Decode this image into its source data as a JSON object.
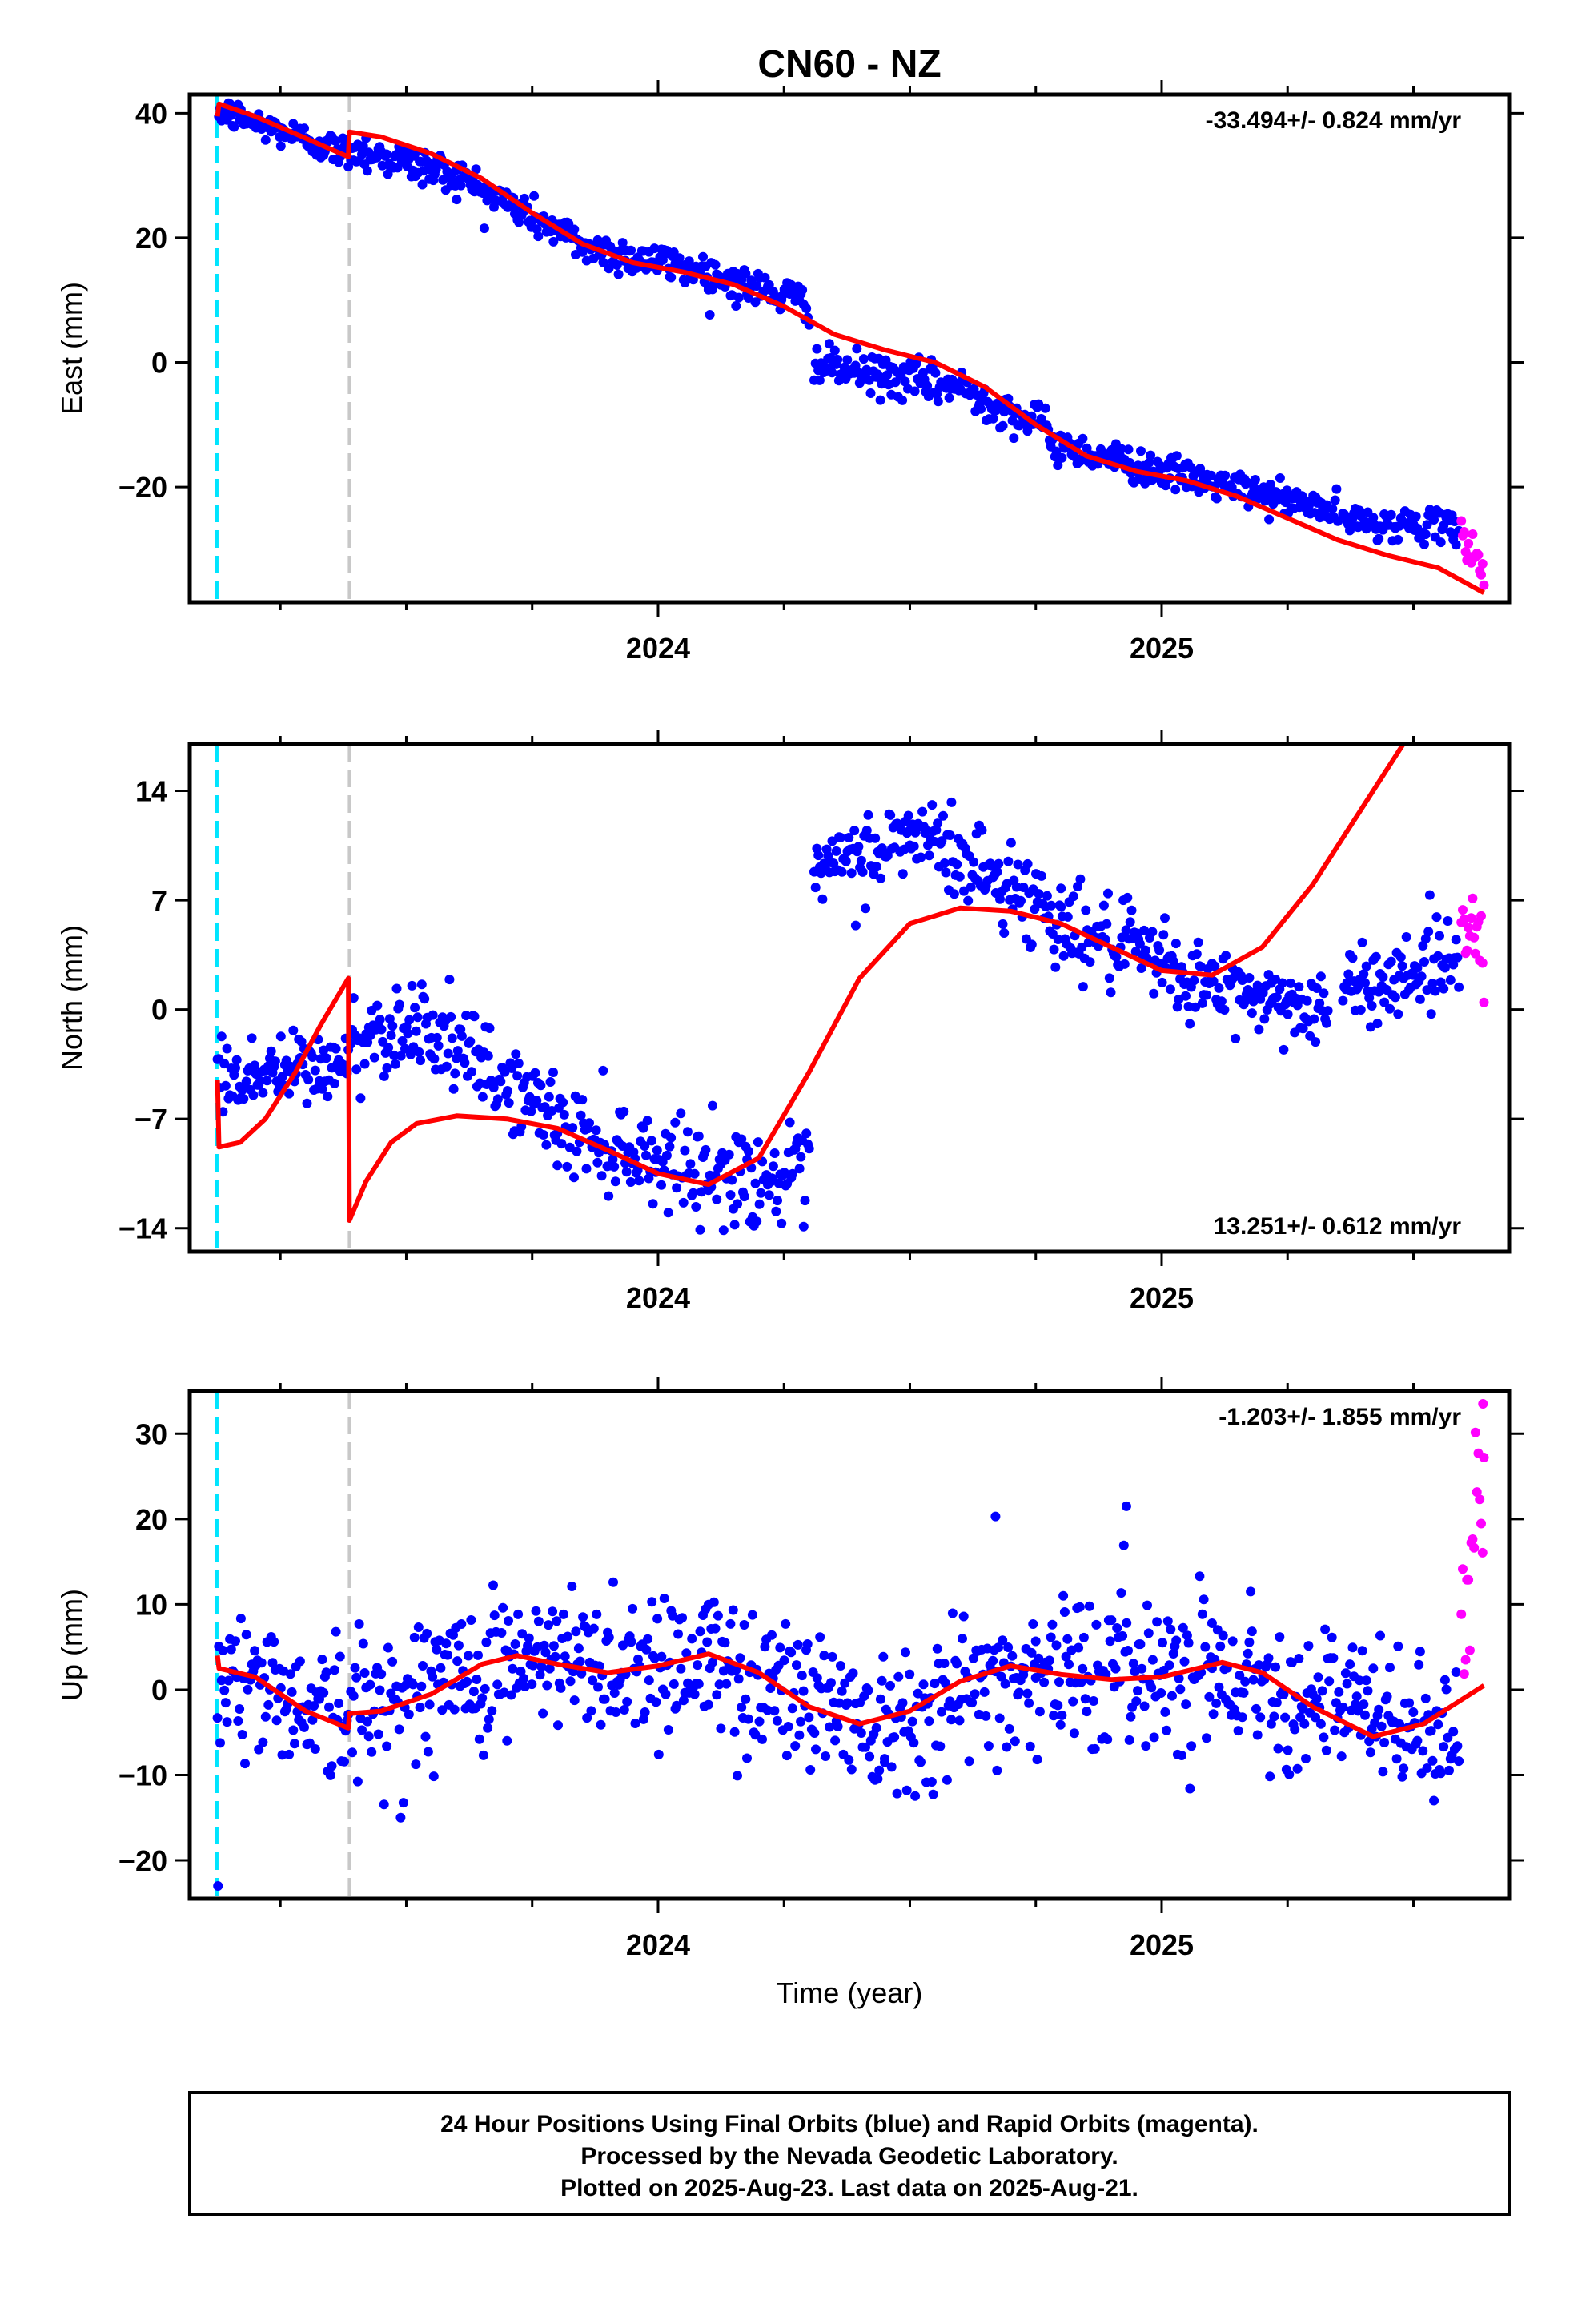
{
  "station": "CN60 - NZ",
  "colors": {
    "final": "#0000ff",
    "rapid": "#ff00ff",
    "model": "#ff0000",
    "event_cyan": "#00e5ff",
    "event_grey": "#c8c8c8"
  },
  "chart_data": [
    {
      "type": "scatter",
      "id": "east",
      "ylabel": "East (mm)",
      "xlabel": "",
      "xlim": [
        2023.07,
        2025.69
      ],
      "ylim": [
        -38.5,
        43
      ],
      "yticks": [
        -20,
        0,
        20,
        40
      ],
      "xticks": [
        2024,
        2025
      ],
      "minor_xticks": [
        2023.25,
        2023.5,
        2023.75,
        2024.25,
        2024.5,
        2024.75,
        2025.25,
        2025.5
      ],
      "rate_text": "-33.494+/- 0.824 mm/yr",
      "rate_position": "top-right",
      "vlines": [
        {
          "x": 2023.124,
          "color": "cyan"
        },
        {
          "x": 2023.387,
          "color": "grey"
        }
      ],
      "series": [
        {
          "kind": "final",
          "segments": [
            {
              "x0": 2023.125,
              "x1": 2023.385,
              "y0": 40.5,
              "y1": 33.5,
              "noise": 1.3
            },
            {
              "x0": 2023.39,
              "x1": 2023.6,
              "y0": 34.5,
              "y1": 30.0,
              "noise": 1.6
            },
            {
              "x0": 2023.6,
              "x1": 2023.85,
              "y0": 30.0,
              "y1": 19.0,
              "noise": 1.5
            },
            {
              "x0": 2023.85,
              "x1": 2024.1,
              "y0": 18.5,
              "y1": 14.5,
              "noise": 1.5
            },
            {
              "x0": 2024.1,
              "x1": 2024.3,
              "y0": 14.0,
              "y1": 9.5,
              "noise": 1.5
            },
            {
              "x0": 2024.31,
              "x1": 2024.6,
              "y0": -0.5,
              "y1": -4.0,
              "noise": 1.6
            },
            {
              "x0": 2024.6,
              "x1": 2024.78,
              "y0": -4.0,
              "y1": -11.0,
              "noise": 1.6
            },
            {
              "x0": 2024.78,
              "x1": 2025.0,
              "y0": -13.0,
              "y1": -17.5,
              "noise": 1.4
            },
            {
              "x0": 2025.0,
              "x1": 2025.35,
              "y0": -17.5,
              "y1": -24.0,
              "noise": 1.3
            },
            {
              "x0": 2025.36,
              "x1": 2025.59,
              "y0": -25.5,
              "y1": -26.5,
              "noise": 1.2
            }
          ]
        },
        {
          "kind": "rapid",
          "segments": [
            {
              "x0": 2025.595,
              "x1": 2025.64,
              "y0": -27.5,
              "y1": -33.0,
              "noise": 1.8
            }
          ]
        }
      ],
      "model": [
        [
          2023.125,
          39.5
        ],
        [
          2023.128,
          41.5
        ],
        [
          2023.2,
          39.5
        ],
        [
          2023.3,
          36.0
        ],
        [
          2023.385,
          33.0
        ],
        [
          2023.387,
          37.0
        ],
        [
          2023.45,
          36.2
        ],
        [
          2023.55,
          33.5
        ],
        [
          2023.65,
          29.5
        ],
        [
          2023.75,
          24.0
        ],
        [
          2023.85,
          19.0
        ],
        [
          2023.95,
          16.0
        ],
        [
          2024.05,
          14.5
        ],
        [
          2024.15,
          12.5
        ],
        [
          2024.25,
          9.0
        ],
        [
          2024.35,
          4.5
        ],
        [
          2024.45,
          2.0
        ],
        [
          2024.55,
          0.0
        ],
        [
          2024.65,
          -4.0
        ],
        [
          2024.75,
          -10.0
        ],
        [
          2024.85,
          -15.0
        ],
        [
          2024.95,
          -17.5
        ],
        [
          2025.05,
          -19.0
        ],
        [
          2025.15,
          -21.5
        ],
        [
          2025.25,
          -25.0
        ],
        [
          2025.35,
          -28.5
        ],
        [
          2025.45,
          -31.0
        ],
        [
          2025.55,
          -33.0
        ],
        [
          2025.64,
          -37.0
        ]
      ]
    },
    {
      "type": "scatter",
      "id": "north",
      "ylabel": "North (mm)",
      "xlabel": "",
      "xlim": [
        2023.07,
        2025.69
      ],
      "ylim": [
        -15.5,
        17
      ],
      "yticks": [
        -14,
        -7,
        0,
        7,
        14
      ],
      "xticks": [
        2024,
        2025
      ],
      "minor_xticks": [
        2023.25,
        2023.5,
        2023.75,
        2024.25,
        2024.5,
        2024.75,
        2025.25,
        2025.5
      ],
      "rate_text": "13.251+/- 0.612 mm/yr",
      "rate_position": "bottom-right",
      "vlines": [
        {
          "x": 2023.124,
          "color": "cyan"
        },
        {
          "x": 2023.387,
          "color": "grey"
        }
      ],
      "series": [
        {
          "kind": "final",
          "segments": [
            {
              "x0": 2023.125,
              "x1": 2023.385,
              "y0": -4.5,
              "y1": -3.5,
              "noise": 1.3
            },
            {
              "x0": 2023.39,
              "x1": 2023.55,
              "y0": -2.0,
              "y1": -0.5,
              "noise": 1.4
            },
            {
              "x0": 2023.55,
              "x1": 2023.8,
              "y0": -1.5,
              "y1": -7.0,
              "noise": 1.4
            },
            {
              "x0": 2023.8,
              "x1": 2024.1,
              "y0": -7.5,
              "y1": -10.5,
              "noise": 1.5
            },
            {
              "x0": 2024.1,
              "x1": 2024.3,
              "y0": -10.5,
              "y1": -11.0,
              "noise": 1.5
            },
            {
              "x0": 2024.31,
              "x1": 2024.5,
              "y0": 8.5,
              "y1": 11.0,
              "noise": 1.4
            },
            {
              "x0": 2024.5,
              "x1": 2024.8,
              "y0": 11.5,
              "y1": 6.0,
              "noise": 1.5
            },
            {
              "x0": 2024.8,
              "x1": 2025.1,
              "y0": 5.5,
              "y1": 1.5,
              "noise": 1.4
            },
            {
              "x0": 2025.1,
              "x1": 2025.33,
              "y0": 1.5,
              "y1": 0.0,
              "noise": 1.2
            },
            {
              "x0": 2025.36,
              "x1": 2025.59,
              "y0": 1.0,
              "y1": 3.5,
              "noise": 1.3
            }
          ]
        },
        {
          "kind": "rapid",
          "segments": [
            {
              "x0": 2025.595,
              "x1": 2025.64,
              "y0": 6.0,
              "y1": 4.0,
              "noise": 1.6
            }
          ]
        }
      ],
      "model": [
        [
          2023.125,
          -4.5
        ],
        [
          2023.128,
          -8.8
        ],
        [
          2023.17,
          -8.5
        ],
        [
          2023.22,
          -7.0
        ],
        [
          2023.28,
          -4.0
        ],
        [
          2023.33,
          -1.0
        ],
        [
          2023.385,
          2.0
        ],
        [
          2023.387,
          -13.5
        ],
        [
          2023.42,
          -11.0
        ],
        [
          2023.47,
          -8.5
        ],
        [
          2023.52,
          -7.3
        ],
        [
          2023.6,
          -6.8
        ],
        [
          2023.7,
          -7.0
        ],
        [
          2023.8,
          -7.6
        ],
        [
          2023.9,
          -9.0
        ],
        [
          2024.0,
          -10.5
        ],
        [
          2024.1,
          -11.2
        ],
        [
          2024.2,
          -9.5
        ],
        [
          2024.3,
          -4.0
        ],
        [
          2024.4,
          2.0
        ],
        [
          2024.5,
          5.5
        ],
        [
          2024.6,
          6.5
        ],
        [
          2024.7,
          6.3
        ],
        [
          2024.8,
          5.5
        ],
        [
          2024.9,
          4.0
        ],
        [
          2025.0,
          2.5
        ],
        [
          2025.1,
          2.2
        ],
        [
          2025.2,
          4.0
        ],
        [
          2025.3,
          8.0
        ],
        [
          2025.4,
          13.0
        ],
        [
          2025.48,
          17.0
        ]
      ]
    },
    {
      "type": "scatter",
      "id": "up",
      "ylabel": "Up (mm)",
      "xlabel": "Time (year)",
      "xlim": [
        2023.07,
        2025.69
      ],
      "ylim": [
        -24.5,
        35
      ],
      "yticks": [
        -20,
        -10,
        0,
        10,
        20,
        30
      ],
      "xticks": [
        2024,
        2025
      ],
      "minor_xticks": [
        2023.25,
        2023.5,
        2023.75,
        2024.25,
        2024.5,
        2024.75,
        2025.25,
        2025.5
      ],
      "rate_text": "-1.203+/- 1.855 mm/yr",
      "rate_position": "top-right",
      "vlines": [
        {
          "x": 2023.124,
          "color": "cyan"
        },
        {
          "x": 2023.387,
          "color": "grey"
        }
      ],
      "series": [
        {
          "kind": "final",
          "segments": [
            {
              "x0": 2023.125,
              "x1": 2023.385,
              "y0": 2.0,
              "y1": -3.0,
              "noise": 4.2
            },
            {
              "x0": 2023.39,
              "x1": 2023.7,
              "y0": -3.0,
              "y1": 3.5,
              "noise": 4.5
            },
            {
              "x0": 2023.7,
              "x1": 2024.1,
              "y0": 3.0,
              "y1": 3.5,
              "noise": 4.5
            },
            {
              "x0": 2024.1,
              "x1": 2024.45,
              "y0": 3.0,
              "y1": -3.5,
              "noise": 4.5
            },
            {
              "x0": 2024.45,
              "x1": 2024.75,
              "y0": -3.5,
              "y1": 2.5,
              "noise": 4.5
            },
            {
              "x0": 2024.75,
              "x1": 2025.1,
              "y0": 2.0,
              "y1": 3.0,
              "noise": 4.5
            },
            {
              "x0": 2025.1,
              "x1": 2025.59,
              "y0": 2.5,
              "y1": -6.0,
              "noise": 4.0
            }
          ]
        },
        {
          "kind": "rapid",
          "segments": [
            {
              "x0": 2025.595,
              "x1": 2025.64,
              "y0": 10.0,
              "y1": 20.0,
              "noise": 6.0
            }
          ]
        }
      ],
      "extra_points": [
        {
          "kind": "final",
          "x": 2023.126,
          "y": -23.0
        },
        {
          "kind": "rapid",
          "x": 2025.638,
          "y": 33.5
        },
        {
          "kind": "final",
          "x": 2024.67,
          "y": 20.3
        },
        {
          "kind": "final",
          "x": 2024.93,
          "y": 21.5
        }
      ],
      "model": [
        [
          2023.125,
          4.0
        ],
        [
          2023.128,
          2.5
        ],
        [
          2023.2,
          1.5
        ],
        [
          2023.3,
          -2.5
        ],
        [
          2023.385,
          -4.5
        ],
        [
          2023.387,
          -2.8
        ],
        [
          2023.45,
          -2.5
        ],
        [
          2023.55,
          -0.5
        ],
        [
          2023.65,
          3.0
        ],
        [
          2023.72,
          4.0
        ],
        [
          2023.8,
          3.0
        ],
        [
          2023.9,
          2.0
        ],
        [
          2024.0,
          2.8
        ],
        [
          2024.1,
          4.2
        ],
        [
          2024.2,
          2.0
        ],
        [
          2024.3,
          -2.0
        ],
        [
          2024.4,
          -4.0
        ],
        [
          2024.5,
          -2.5
        ],
        [
          2024.6,
          1.0
        ],
        [
          2024.7,
          2.8
        ],
        [
          2024.8,
          1.8
        ],
        [
          2024.9,
          1.2
        ],
        [
          2025.0,
          1.5
        ],
        [
          2025.12,
          3.2
        ],
        [
          2025.2,
          2.0
        ],
        [
          2025.3,
          -2.0
        ],
        [
          2025.42,
          -5.5
        ],
        [
          2025.52,
          -4.0
        ],
        [
          2025.64,
          0.5
        ]
      ]
    }
  ],
  "footer": {
    "line1": "24 Hour Positions Using Final Orbits (blue) and Rapid Orbits (magenta).",
    "line2": "Processed by the Nevada Geodetic Laboratory.",
    "line3": "Plotted on 2025-Aug-23. Last data on 2025-Aug-21."
  }
}
